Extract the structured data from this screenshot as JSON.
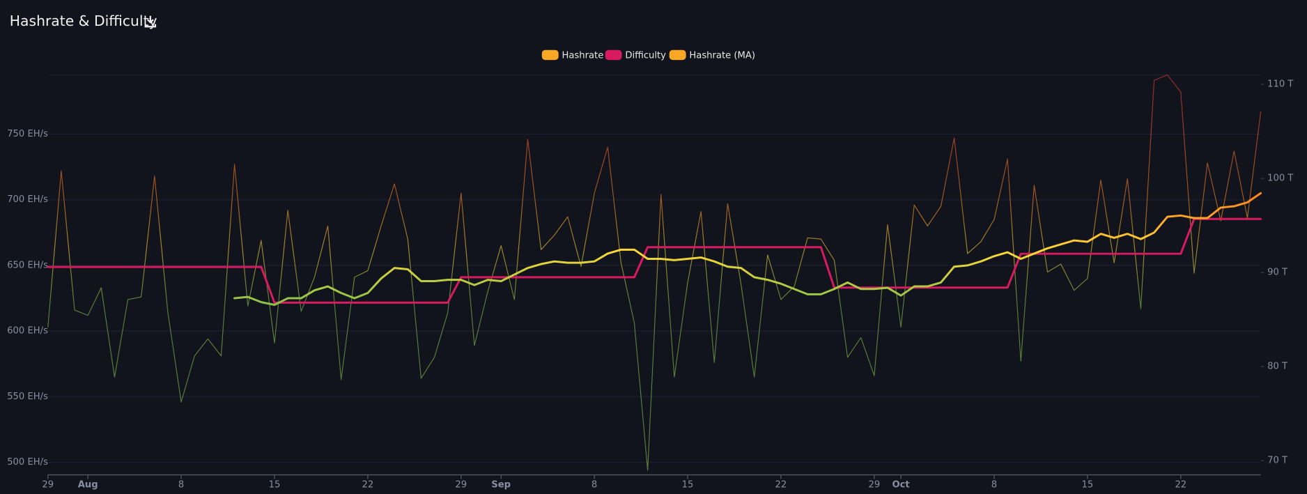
{
  "chart_data": {
    "type": "line",
    "title": "Hashrate & Difficulty",
    "categories": [
      "Jul 29",
      "Jul 30",
      "Jul 31",
      "Aug 1",
      "Aug 2",
      "Aug 3",
      "Aug 4",
      "Aug 5",
      "Aug 6",
      "Aug 7",
      "Aug 8",
      "Aug 9",
      "Aug 10",
      "Aug 11",
      "Aug 12",
      "Aug 13",
      "Aug 14",
      "Aug 15",
      "Aug 16",
      "Aug 17",
      "Aug 18",
      "Aug 19",
      "Aug 20",
      "Aug 21",
      "Aug 22",
      "Aug 23",
      "Aug 24",
      "Aug 25",
      "Aug 26",
      "Aug 27",
      "Aug 28",
      "Aug 29",
      "Aug 30",
      "Aug 31",
      "Sep 1",
      "Sep 2",
      "Sep 3",
      "Sep 4",
      "Sep 5",
      "Sep 6",
      "Sep 7",
      "Sep 8",
      "Sep 9",
      "Sep 10",
      "Sep 11",
      "Sep 12",
      "Sep 13",
      "Sep 14",
      "Sep 15",
      "Sep 16",
      "Sep 17",
      "Sep 18",
      "Sep 19",
      "Sep 20",
      "Sep 21",
      "Sep 22",
      "Sep 23",
      "Sep 24",
      "Sep 25",
      "Sep 26",
      "Sep 27",
      "Sep 28",
      "Sep 29",
      "Sep 30",
      "Oct 1",
      "Oct 2",
      "Oct 3",
      "Oct 4",
      "Oct 5",
      "Oct 6",
      "Oct 7",
      "Oct 8",
      "Oct 9",
      "Oct 10",
      "Oct 11",
      "Oct 12",
      "Oct 13",
      "Oct 14",
      "Oct 15",
      "Oct 16",
      "Oct 17",
      "Oct 18",
      "Oct 19",
      "Oct 20",
      "Oct 21",
      "Oct 22",
      "Oct 23",
      "Oct 24",
      "Oct 25",
      "Oct 26",
      "Oct 27",
      "Oct 28"
    ],
    "xticks": [
      {
        "value": "Jul 29",
        "label": "29"
      },
      {
        "value": "Aug 1",
        "label": "Aug"
      },
      {
        "value": "Aug 8",
        "label": "8"
      },
      {
        "value": "Aug 15",
        "label": "15"
      },
      {
        "value": "Aug 22",
        "label": "22"
      },
      {
        "value": "Aug 29",
        "label": "29"
      },
      {
        "value": "Sep 1",
        "label": "Sep"
      },
      {
        "value": "Sep 8",
        "label": "8"
      },
      {
        "value": "Sep 15",
        "label": "15"
      },
      {
        "value": "Sep 22",
        "label": "22"
      },
      {
        "value": "Sep 29",
        "label": "29"
      },
      {
        "value": "Oct 1",
        "label": "Oct"
      },
      {
        "value": "Oct 8",
        "label": "8"
      },
      {
        "value": "Oct 15",
        "label": "15"
      },
      {
        "value": "Oct 22",
        "label": "22"
      }
    ],
    "ylim": [
      490.5,
      795
    ],
    "yticks": [
      {
        "value": 500,
        "label": "500 EH/s"
      },
      {
        "value": 550,
        "label": "550 EH/s"
      },
      {
        "value": 600,
        "label": "600 EH/s"
      },
      {
        "value": 650,
        "label": "650 EH/s"
      },
      {
        "value": 700,
        "label": "700 EH/s"
      },
      {
        "value": 750,
        "label": "750 EH/s"
      }
    ],
    "y2lim": [
      68.5,
      111
    ],
    "y2ticks": [
      {
        "value": 70,
        "label": "70 T"
      },
      {
        "value": 80,
        "label": "80 T"
      },
      {
        "value": 90,
        "label": "90 T"
      },
      {
        "value": 100,
        "label": "100 T"
      },
      {
        "value": 110,
        "label": "110 T"
      }
    ],
    "grid": true,
    "legend": "top",
    "gradient": [
      "#e53935",
      "#ff8a1f",
      "#fdd835",
      "#8bc34a"
    ],
    "series": [
      {
        "name": "Hashrate",
        "color": "#f9a825",
        "axis": "y",
        "values": [
          603,
          722,
          616,
          612,
          633,
          565,
          624,
          626,
          718,
          614,
          546,
          581,
          594,
          581,
          727,
          619,
          669,
          591,
          692,
          615,
          641,
          680,
          563,
          641,
          646,
          680,
          712,
          670,
          564,
          580,
          614,
          705,
          589,
          630,
          665,
          624,
          746,
          662,
          673,
          687,
          649,
          705,
          740,
          652,
          606,
          494,
          704,
          565,
          637,
          691,
          576,
          697,
          636,
          565,
          658,
          624,
          634,
          671,
          670,
          654,
          580,
          595,
          566,
          681,
          603,
          696,
          680,
          695,
          747,
          659,
          668,
          685,
          731,
          577,
          711,
          645,
          651,
          631,
          640,
          715,
          652,
          716,
          617,
          791,
          795,
          782,
          644,
          728,
          684,
          737,
          686,
          767
        ]
      },
      {
        "name": "Difficulty",
        "color": "#d81b60",
        "axis": "y2",
        "values": [
          90.6,
          90.6,
          90.6,
          90.6,
          90.6,
          90.6,
          90.6,
          90.6,
          90.6,
          90.6,
          90.6,
          90.6,
          90.6,
          90.6,
          90.6,
          90.6,
          90.6,
          86.8,
          86.8,
          86.8,
          86.8,
          86.8,
          86.8,
          86.8,
          86.8,
          86.8,
          86.8,
          86.8,
          86.8,
          86.8,
          86.8,
          89.5,
          89.5,
          89.5,
          89.5,
          89.5,
          89.5,
          89.5,
          89.5,
          89.5,
          89.5,
          89.5,
          89.5,
          89.5,
          89.5,
          92.7,
          92.7,
          92.7,
          92.7,
          92.7,
          92.7,
          92.7,
          92.7,
          92.7,
          92.7,
          92.7,
          92.7,
          92.7,
          92.7,
          88.4,
          88.4,
          88.4,
          88.4,
          88.4,
          88.4,
          88.4,
          88.4,
          88.4,
          88.4,
          88.4,
          88.4,
          88.4,
          88.4,
          92.0,
          92.0,
          92.0,
          92.0,
          92.0,
          92.0,
          92.0,
          92.0,
          92.0,
          92.0,
          92.0,
          92.0,
          92.0,
          95.7,
          95.7,
          95.7,
          95.7,
          95.7,
          95.7
        ]
      },
      {
        "name": "Hashrate (MA)",
        "color": "#f9a825",
        "axis": "y",
        "values": [
          null,
          null,
          null,
          null,
          null,
          null,
          null,
          null,
          null,
          null,
          null,
          null,
          null,
          null,
          625,
          626,
          622,
          620,
          625,
          625,
          631,
          634,
          629,
          625,
          629,
          640,
          648,
          647,
          638,
          638,
          639,
          639,
          635,
          639,
          638,
          643,
          648,
          651,
          653,
          652,
          652,
          653,
          659,
          662,
          662,
          655,
          655,
          654,
          655,
          656,
          653,
          649,
          648,
          641,
          639,
          636,
          632,
          628,
          628,
          632,
          637,
          632,
          632,
          633,
          627,
          634,
          634,
          637,
          649,
          650,
          653,
          657,
          660,
          655,
          659,
          663,
          666,
          669,
          668,
          674,
          671,
          674,
          670,
          675,
          687,
          688,
          686,
          686,
          694,
          695,
          698,
          705
        ]
      }
    ]
  }
}
